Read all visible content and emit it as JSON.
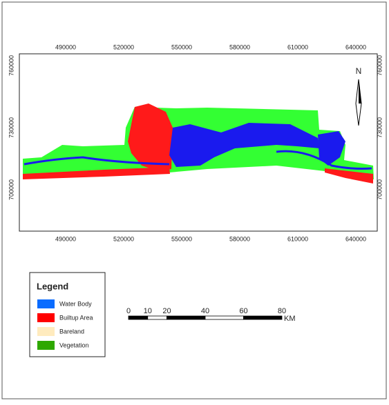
{
  "map": {
    "x_ticks": [
      490000,
      520000,
      550000,
      580000,
      610000,
      640000
    ],
    "y_ticks": [
      760000,
      730000,
      700000
    ],
    "north": "N",
    "legend": {
      "title": "Legend",
      "items": [
        {
          "label": "Water Body",
          "color": "#0a6cff"
        },
        {
          "label": "Builtup Area",
          "color": "#ff0000"
        },
        {
          "label": "Bareland",
          "color": "#ffebbe"
        },
        {
          "label": "Vegetation",
          "color": "#2ea800"
        }
      ]
    },
    "scale_bar": {
      "labels": [
        0,
        10,
        20,
        40,
        60,
        80
      ],
      "unit": "KM"
    }
  }
}
